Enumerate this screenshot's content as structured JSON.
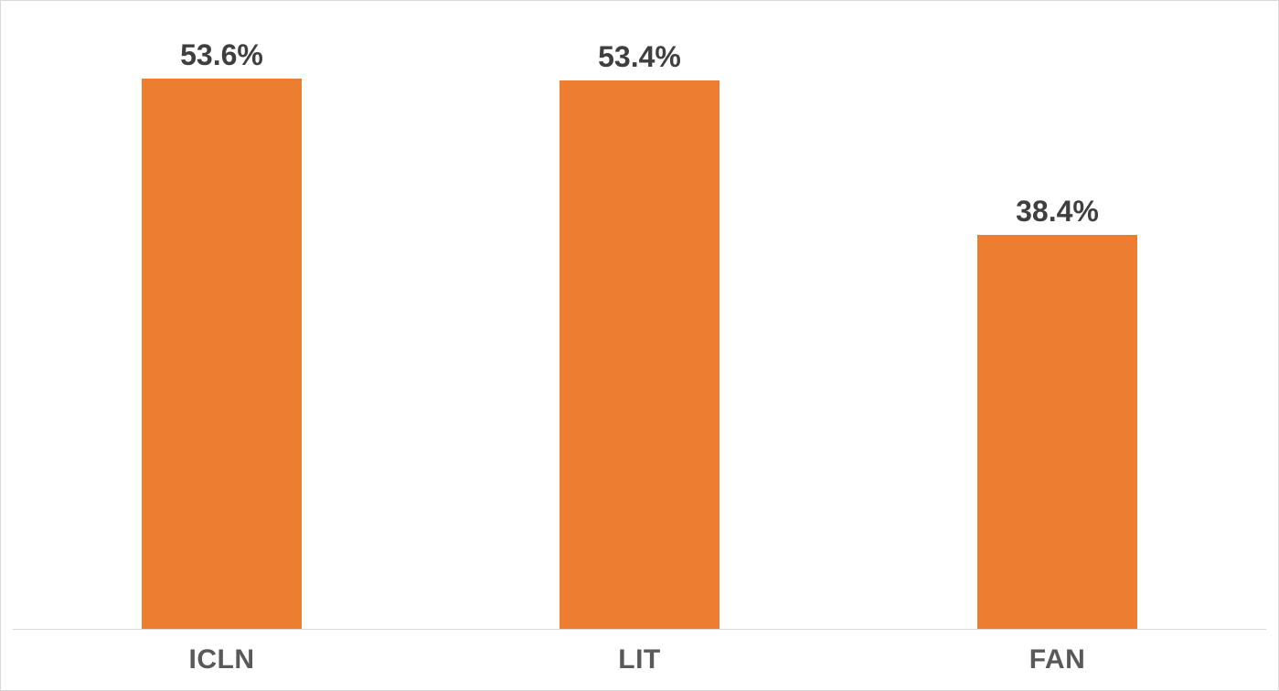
{
  "chart": {
    "background": "#FFFFFF",
    "border_color": "#D9D9D9"
  },
  "chart_data": {
    "type": "bar",
    "title": "",
    "xlabel": "",
    "ylabel": "",
    "categories": [
      "ICLN",
      "LIT",
      "FAN"
    ],
    "values": [
      53.6,
      53.4,
      38.4
    ],
    "value_labels": [
      "53.6%",
      "53.4%",
      "38.4%"
    ],
    "ylim": [
      0,
      60
    ],
    "grid": false,
    "legend": false,
    "bar_color": "#ED7D31",
    "value_label_color": "#3F3F3F",
    "category_label_color": "#595959",
    "axis_line_color": "#D9D9D9"
  }
}
